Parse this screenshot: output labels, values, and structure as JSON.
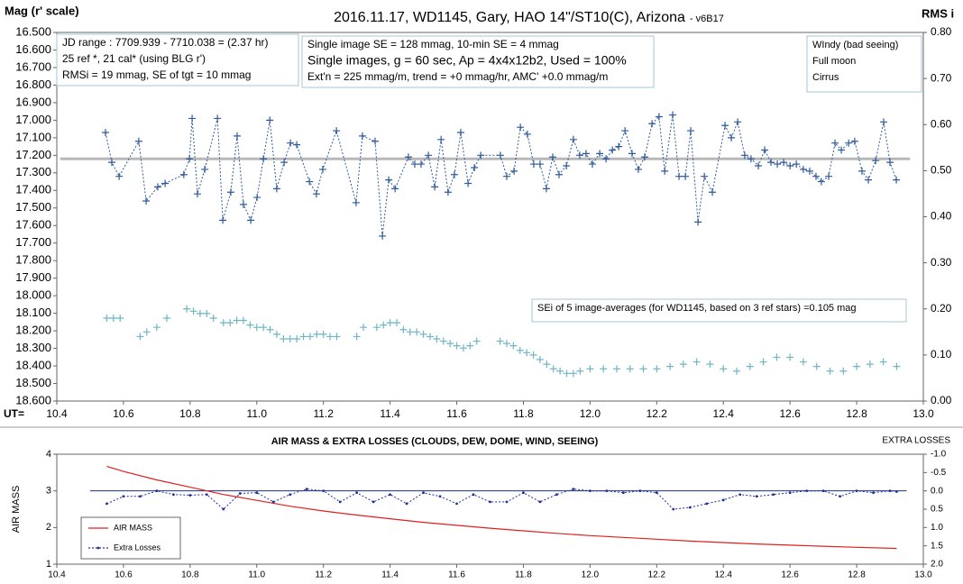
{
  "chart_data": [
    {
      "type": "scatter",
      "title": "2016.11.17,  WD1145, Gary, HAO  14\"/ST10(C), Arizona",
      "subtitle": "- v6B17",
      "y_label": "Mag (r' scale)",
      "y2_label": "RMS i",
      "x_label": "UT=",
      "xlim": [
        10.4,
        13.0
      ],
      "xticks": [
        10.4,
        10.6,
        10.8,
        {
          "value": 11.0,
          "label": "11.0"
        },
        11.2,
        11.4,
        11.6,
        11.8,
        {
          "value": 12.0,
          "label": "12.0"
        },
        12.2,
        12.4,
        12.6,
        12.8,
        {
          "value": 13.0,
          "label": "13.0"
        }
      ],
      "ylim": [
        18.6,
        16.5
      ],
      "yticks": [
        {
          "value": 16.5,
          "label": "16.500"
        },
        {
          "value": 16.6,
          "label": "16.600"
        },
        {
          "value": 16.7,
          "label": "16.700"
        },
        {
          "value": 16.8,
          "label": "16.800"
        },
        {
          "value": 16.9,
          "label": "16.900"
        },
        {
          "value": 17.0,
          "label": "17.000"
        },
        {
          "value": 17.1,
          "label": "17.100"
        },
        {
          "value": 17.2,
          "label": "17.200"
        },
        {
          "value": 17.3,
          "label": "17.300"
        },
        {
          "value": 17.4,
          "label": "17.400"
        },
        {
          "value": 17.5,
          "label": "17.500"
        },
        {
          "value": 17.6,
          "label": "17.600"
        },
        {
          "value": 17.7,
          "label": "17.700"
        },
        {
          "value": 17.8,
          "label": "17.800"
        },
        {
          "value": 17.9,
          "label": "17.900"
        },
        {
          "value": 18.0,
          "label": "18.000"
        },
        {
          "value": 18.1,
          "label": "18.100"
        },
        {
          "value": 18.2,
          "label": "18.200"
        },
        {
          "value": 18.3,
          "label": "18.300"
        },
        {
          "value": 18.4,
          "label": "18.400"
        },
        {
          "value": 18.5,
          "label": "18.500"
        },
        {
          "value": 18.6,
          "label": "18.600"
        }
      ],
      "y2lim": [
        0,
        0.8
      ],
      "y2ticks": [
        {
          "value": 0,
          "label": "0.00"
        },
        {
          "value": 0.1,
          "label": "0.10"
        },
        {
          "value": 0.2,
          "label": "0.20"
        },
        {
          "value": 0.3,
          "label": "0.30"
        },
        {
          "value": 0.4,
          "label": "0.40"
        },
        {
          "value": 0.5,
          "label": "0.50"
        },
        {
          "value": 0.6,
          "label": "0.60"
        },
        {
          "value": 0.7,
          "label": "0.70"
        },
        {
          "value": 0.8,
          "label": "0.80"
        }
      ],
      "reference_line": {
        "value": 17.22,
        "x": [
          10.41,
          12.96
        ],
        "color": "#b8b8b8"
      },
      "series": [
        {
          "color": "#2e5a9c",
          "marker": "+",
          "line": "dotted",
          "x": [
            10.546,
            10.565,
            10.587,
            10.646,
            10.668,
            10.703,
            10.725,
            10.781,
            10.798,
            10.806,
            10.822,
            10.844,
            10.882,
            10.898,
            10.922,
            10.941,
            10.96,
            10.982,
            11.001,
            11.02,
            11.039,
            11.06,
            11.082,
            11.101,
            11.12,
            11.158,
            11.179,
            11.198,
            11.239,
            11.298,
            11.317,
            11.355,
            11.377,
            11.396,
            11.415,
            11.455,
            11.474,
            11.493,
            11.515,
            11.534,
            11.553,
            11.574,
            11.593,
            11.612,
            11.634,
            11.653,
            11.672,
            11.731,
            11.75,
            11.772,
            11.791,
            11.812,
            11.831,
            11.85,
            11.869,
            11.888,
            11.907,
            11.929,
            11.95,
            11.969,
            11.988,
            12.007,
            12.029,
            12.048,
            12.067,
            12.086,
            12.105,
            12.126,
            12.145,
            12.164,
            12.186,
            12.207,
            12.224,
            12.248,
            12.267,
            12.286,
            12.302,
            12.324,
            12.343,
            12.367,
            12.405,
            12.424,
            12.443,
            12.464,
            12.483,
            12.505,
            12.524,
            12.543,
            12.562,
            12.581,
            12.6,
            12.619,
            12.64,
            12.659,
            12.678,
            12.694,
            12.716,
            12.735,
            12.754,
            12.776,
            12.794,
            12.816,
            12.835,
            12.857,
            12.881,
            12.9,
            12.919
          ],
          "values": [
            17.07,
            17.24,
            17.32,
            17.12,
            17.46,
            17.38,
            17.36,
            17.31,
            17.22,
            16.99,
            17.42,
            17.28,
            16.99,
            17.57,
            17.41,
            17.09,
            17.48,
            17.57,
            17.44,
            17.22,
            17.0,
            17.39,
            17.24,
            17.13,
            17.14,
            17.35,
            17.42,
            17.28,
            17.06,
            17.47,
            17.09,
            17.12,
            17.66,
            17.34,
            17.39,
            17.21,
            17.25,
            17.25,
            17.2,
            17.38,
            17.11,
            17.41,
            17.31,
            17.07,
            17.36,
            17.27,
            17.2,
            17.2,
            17.32,
            17.29,
            17.04,
            17.08,
            17.25,
            17.25,
            17.39,
            17.21,
            17.31,
            17.26,
            17.11,
            17.2,
            17.19,
            17.25,
            17.19,
            17.22,
            17.17,
            17.15,
            17.06,
            17.19,
            17.28,
            17.21,
            17.02,
            16.98,
            17.29,
            16.97,
            17.32,
            17.32,
            17.06,
            17.58,
            17.32,
            17.41,
            17.03,
            17.1,
            17.01,
            17.2,
            17.22,
            17.26,
            17.17,
            17.24,
            17.25,
            17.24,
            17.26,
            17.25,
            17.28,
            17.29,
            17.32,
            17.35,
            17.32,
            17.13,
            17.17,
            17.13,
            17.12,
            17.29,
            17.34,
            17.23,
            17.01,
            17.24,
            17.34
          ]
        },
        {
          "color": "#6fb6c4",
          "marker": "+",
          "line": "none",
          "axis": "y2",
          "x": [
            10.55,
            10.57,
            10.59,
            10.65,
            10.67,
            10.7,
            10.73,
            10.79,
            10.81,
            10.83,
            10.85,
            10.87,
            10.9,
            10.92,
            10.94,
            10.96,
            10.98,
            11.0,
            11.02,
            11.04,
            11.06,
            11.08,
            11.1,
            11.12,
            11.14,
            11.16,
            11.18,
            11.2,
            11.22,
            11.24,
            11.3,
            11.32,
            11.36,
            11.38,
            11.4,
            11.42,
            11.44,
            11.46,
            11.48,
            11.5,
            11.52,
            11.54,
            11.56,
            11.58,
            11.6,
            11.62,
            11.64,
            11.66,
            11.73,
            11.75,
            11.77,
            11.79,
            11.81,
            11.83,
            11.85,
            11.87,
            11.89,
            11.91,
            11.93,
            11.95,
            11.97,
            12.0,
            12.04,
            12.08,
            12.12,
            12.16,
            12.2,
            12.24,
            12.28,
            12.32,
            12.36,
            12.4,
            12.44,
            12.48,
            12.52,
            12.56,
            12.6,
            12.64,
            12.68,
            12.72,
            12.76,
            12.8,
            12.84,
            12.88,
            12.92
          ],
          "values": [
            0.18,
            0.18,
            0.18,
            0.14,
            0.15,
            0.16,
            0.18,
            0.2,
            0.195,
            0.19,
            0.19,
            0.18,
            0.17,
            0.17,
            0.175,
            0.175,
            0.165,
            0.16,
            0.16,
            0.155,
            0.145,
            0.135,
            0.135,
            0.135,
            0.14,
            0.14,
            0.145,
            0.145,
            0.14,
            0.14,
            0.14,
            0.16,
            0.16,
            0.165,
            0.17,
            0.17,
            0.155,
            0.15,
            0.15,
            0.145,
            0.14,
            0.135,
            0.13,
            0.125,
            0.12,
            0.115,
            0.12,
            0.13,
            0.13,
            0.125,
            0.12,
            0.11,
            0.105,
            0.1,
            0.09,
            0.08,
            0.07,
            0.065,
            0.06,
            0.06,
            0.065,
            0.07,
            0.07,
            0.07,
            0.07,
            0.07,
            0.07,
            0.075,
            0.08,
            0.085,
            0.08,
            0.07,
            0.065,
            0.075,
            0.085,
            0.095,
            0.095,
            0.085,
            0.075,
            0.065,
            0.065,
            0.075,
            0.08,
            0.085,
            0.075
          ]
        }
      ],
      "annotations": [
        {
          "lines": [
            "JD range  : 7709.939 - 7710.038  = (2.37 hr)",
            "25 ref *, 21 cal* (using BLG r')",
            "RMSi = 19 mmag, SE of tgt = 10 mmag"
          ]
        },
        {
          "lines": [
            "Single image SE = 128 mmag, 10-min SE = 4 mmag",
            "Single images, g = 60 sec, Ap = 4x4x12b2, Used = 100%",
            "Ext'n = 225 mmag/m, trend = +0 mmag/hr, AMC' +0.0 mmag/m"
          ]
        },
        {
          "lines": [
            "WIndy (bad seeing)",
            "Full moon",
            "Cirrus"
          ]
        },
        {
          "lines": [
            "SEi of 5 image-averages (for WD1145, based on 3 ref stars) =0.105 mag"
          ]
        }
      ]
    },
    {
      "type": "line",
      "title": "AIR MASS & EXTRA LOSSES (CLOUDS, DEW, DOME, WIND, SEEING)",
      "y_label": "AIR MASS",
      "y2_label": "EXTRA LOSSES",
      "xlim": [
        10.4,
        13.0
      ],
      "xticks": [
        10.4,
        10.6,
        10.8,
        {
          "value": 11.0,
          "label": "11.0"
        },
        11.2,
        11.4,
        11.6,
        11.8,
        {
          "value": 12.0,
          "label": "12.0"
        },
        12.2,
        12.4,
        12.6,
        12.8,
        {
          "value": 13.0,
          "label": "13.0"
        }
      ],
      "ylim": [
        1,
        4
      ],
      "yticks": [
        1,
        2,
        3,
        4
      ],
      "y2lim": [
        2.0,
        -1.0
      ],
      "y2ticks": [
        {
          "value": -1.0,
          "label": "-1.0"
        },
        -0.5,
        {
          "value": 0.0,
          "label": "0.0"
        },
        0.5,
        {
          "value": 1.0,
          "label": "1.0"
        },
        1.5,
        {
          "value": 2.0,
          "label": "2.0"
        }
      ],
      "reference_line": {
        "value": 3,
        "x": [
          10.5,
          12.95
        ],
        "color": "#1f2f7a"
      },
      "legend": "lower left",
      "series": [
        {
          "name": "AIR MASS",
          "color": "#e02020",
          "marker": "none",
          "line": "solid",
          "x": [
            10.55,
            10.6,
            10.7,
            10.8,
            10.9,
            11.0,
            11.1,
            11.2,
            11.3,
            11.4,
            11.5,
            11.6,
            11.7,
            11.8,
            11.9,
            12.0,
            12.1,
            12.2,
            12.3,
            12.4,
            12.5,
            12.6,
            12.7,
            12.8,
            12.92
          ],
          "values": [
            3.67,
            3.53,
            3.3,
            3.1,
            2.9,
            2.74,
            2.58,
            2.45,
            2.34,
            2.24,
            2.14,
            2.06,
            1.98,
            1.91,
            1.84,
            1.78,
            1.73,
            1.68,
            1.63,
            1.59,
            1.55,
            1.52,
            1.49,
            1.46,
            1.43
          ]
        },
        {
          "name": "Extra Losses",
          "color": "#1f2f9a",
          "marker": "dot",
          "line": "dotted",
          "axis": "y2",
          "x": [
            10.55,
            10.6,
            10.65,
            10.7,
            10.75,
            10.8,
            10.85,
            10.9,
            10.95,
            11.0,
            11.05,
            11.1,
            11.15,
            11.2,
            11.25,
            11.3,
            11.35,
            11.4,
            11.45,
            11.5,
            11.55,
            11.6,
            11.65,
            11.7,
            11.75,
            11.8,
            11.85,
            11.9,
            11.95,
            12.0,
            12.05,
            12.1,
            12.15,
            12.2,
            12.25,
            12.3,
            12.35,
            12.4,
            12.45,
            12.5,
            12.55,
            12.6,
            12.65,
            12.7,
            12.75,
            12.8,
            12.85,
            12.9,
            12.92
          ],
          "values": [
            0.35,
            0.15,
            0.15,
            0.0,
            0.1,
            0.12,
            0.1,
            0.5,
            0.07,
            0.05,
            0.3,
            0.1,
            -0.05,
            0.0,
            0.3,
            0.05,
            0.3,
            0.1,
            0.35,
            0.05,
            0.15,
            0.35,
            0.1,
            0.3,
            0.3,
            0.05,
            0.3,
            0.1,
            -0.05,
            0.0,
            0.0,
            0.05,
            0.0,
            0.05,
            0.5,
            0.45,
            0.35,
            0.25,
            0.1,
            0.15,
            0.1,
            0.05,
            0.0,
            0.0,
            0.15,
            0.0,
            0.05,
            0.0,
            0.02
          ]
        }
      ]
    }
  ]
}
